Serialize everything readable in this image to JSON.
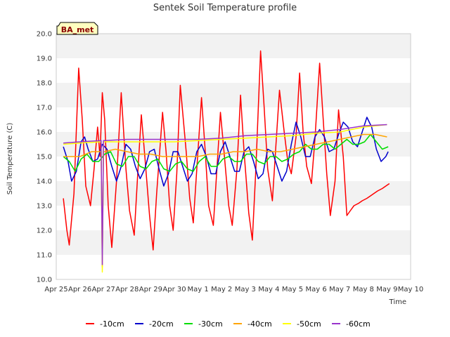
{
  "chart_data": {
    "type": "line",
    "title": "Sentek Soil Temperature profile",
    "xlabel": "Time",
    "ylabel": "Soil Temperature (C)",
    "ylim": [
      10.0,
      20.0
    ],
    "xlim": [
      0,
      15
    ],
    "x_unit": "days since Apr 25",
    "x_ticks": [
      {
        "x": 0,
        "label": "Apr 25"
      },
      {
        "x": 1,
        "label": "Apr 26"
      },
      {
        "x": 2,
        "label": "Apr 27"
      },
      {
        "x": 3,
        "label": "Apr 28"
      },
      {
        "x": 4,
        "label": "Apr 29"
      },
      {
        "x": 5,
        "label": "Apr 30"
      },
      {
        "x": 6,
        "label": "May 1"
      },
      {
        "x": 7,
        "label": "May 2"
      },
      {
        "x": 8,
        "label": "May 3"
      },
      {
        "x": 9,
        "label": "May 4"
      },
      {
        "x": 10,
        "label": "May 5"
      },
      {
        "x": 11,
        "label": "May 6"
      },
      {
        "x": 12,
        "label": "May 7"
      },
      {
        "x": 13,
        "label": "May 8"
      },
      {
        "x": 14,
        "label": "May 9"
      },
      {
        "x": 15,
        "label": "May 10"
      }
    ],
    "y_ticks": [
      "10.0",
      "11.0",
      "12.0",
      "13.0",
      "14.0",
      "15.0",
      "16.0",
      "17.0",
      "18.0",
      "19.0",
      "20.0"
    ],
    "grid": "horizontal bands",
    "legend_position": "bottom",
    "annotation": "BA_met",
    "series": [
      {
        "name": "-10cm",
        "color": "#ff0000",
        "x": [
          0.3,
          0.45,
          0.55,
          0.75,
          0.95,
          1.1,
          1.25,
          1.45,
          1.6,
          1.75,
          1.85,
          1.95,
          2.05,
          2.2,
          2.35,
          2.55,
          2.75,
          2.95,
          3.1,
          3.3,
          3.45,
          3.6,
          3.75,
          3.95,
          4.1,
          4.25,
          4.5,
          4.65,
          4.8,
          4.95,
          5.1,
          5.25,
          5.5,
          5.65,
          5.8,
          5.95,
          6.15,
          6.3,
          6.45,
          6.65,
          6.8,
          6.95,
          7.1,
          7.3,
          7.45,
          7.65,
          7.8,
          7.95,
          8.15,
          8.3,
          8.45,
          8.65,
          8.8,
          8.95,
          9.15,
          9.3,
          9.45,
          9.65,
          9.8,
          9.95,
          10.15,
          10.3,
          10.45,
          10.6,
          10.8,
          10.95,
          11.15,
          11.3,
          11.45,
          11.6,
          11.8,
          11.95,
          12.15,
          12.3,
          12.45,
          12.6,
          12.8,
          12.95,
          13.15,
          13.3,
          13.45,
          13.6,
          13.8,
          13.95,
          14.1
        ],
        "y": [
          13.3,
          12.0,
          11.4,
          13.5,
          18.6,
          16.5,
          13.8,
          13.0,
          14.5,
          16.2,
          15.0,
          17.6,
          16.5,
          13.0,
          11.3,
          14.0,
          17.6,
          14.5,
          12.8,
          11.8,
          14.3,
          16.7,
          15.0,
          12.6,
          11.2,
          13.5,
          16.8,
          15.2,
          13.0,
          12.0,
          14.3,
          17.9,
          15.2,
          13.3,
          12.3,
          14.5,
          17.4,
          15.3,
          13.0,
          12.2,
          14.5,
          16.8,
          15.2,
          13.0,
          12.2,
          14.5,
          17.5,
          15.2,
          12.7,
          11.6,
          14.5,
          19.3,
          17.0,
          14.5,
          13.2,
          15.5,
          17.7,
          16.0,
          14.8,
          14.3,
          15.8,
          18.4,
          16.0,
          14.6,
          13.9,
          15.7,
          18.8,
          16.5,
          14.3,
          12.6,
          14.0,
          16.9,
          15.0,
          12.6,
          12.8,
          13.0,
          13.1,
          13.2,
          13.3,
          13.4,
          13.5,
          13.6,
          13.7,
          13.8,
          13.9
        ]
      },
      {
        "name": "-20cm",
        "color": "#0000cc",
        "x": [
          0.3,
          0.5,
          0.65,
          0.85,
          1.05,
          1.2,
          1.35,
          1.55,
          1.75,
          1.95,
          2.15,
          2.35,
          2.55,
          2.75,
          2.95,
          3.15,
          3.35,
          3.55,
          3.75,
          3.95,
          4.15,
          4.35,
          4.55,
          4.75,
          4.95,
          5.15,
          5.35,
          5.55,
          5.75,
          5.95,
          6.15,
          6.35,
          6.55,
          6.75,
          6.95,
          7.15,
          7.35,
          7.55,
          7.75,
          7.95,
          8.15,
          8.35,
          8.55,
          8.75,
          8.95,
          9.15,
          9.35,
          9.55,
          9.75,
          9.95,
          10.15,
          10.35,
          10.55,
          10.75,
          10.95,
          11.15,
          11.35,
          11.55,
          11.75,
          11.95,
          12.15,
          12.35,
          12.55,
          12.75,
          12.95,
          13.15,
          13.35,
          13.55,
          13.75,
          13.95,
          14.05
        ],
        "y": [
          15.4,
          14.8,
          14.0,
          14.4,
          15.6,
          15.8,
          15.3,
          14.8,
          14.9,
          15.5,
          15.3,
          14.6,
          14.0,
          14.6,
          15.5,
          15.3,
          14.6,
          14.1,
          14.5,
          15.2,
          15.3,
          14.5,
          13.8,
          14.3,
          15.2,
          15.2,
          14.6,
          14.0,
          14.3,
          15.2,
          15.5,
          15.0,
          14.3,
          14.3,
          15.2,
          15.6,
          15.0,
          14.4,
          14.4,
          15.2,
          15.4,
          14.8,
          14.1,
          14.3,
          15.3,
          15.2,
          14.6,
          14.0,
          14.4,
          15.5,
          16.4,
          15.8,
          15.0,
          15.0,
          15.8,
          16.1,
          15.8,
          15.2,
          15.3,
          15.9,
          16.4,
          16.2,
          15.6,
          15.4,
          16.0,
          16.6,
          16.2,
          15.3,
          14.8,
          15.0,
          15.2
        ]
      },
      {
        "name": "-30cm",
        "color": "#00dd00",
        "x": [
          0.3,
          0.55,
          0.8,
          1.05,
          1.3,
          1.55,
          1.8,
          2.05,
          2.3,
          2.55,
          2.8,
          3.05,
          3.3,
          3.55,
          3.8,
          4.05,
          4.3,
          4.55,
          4.8,
          5.05,
          5.3,
          5.55,
          5.8,
          6.05,
          6.3,
          6.55,
          6.8,
          7.05,
          7.3,
          7.55,
          7.8,
          8.05,
          8.3,
          8.55,
          8.8,
          9.05,
          9.3,
          9.55,
          9.8,
          10.05,
          10.3,
          10.55,
          10.8,
          11.05,
          11.3,
          11.55,
          11.8,
          12.05,
          12.3,
          12.55,
          12.8,
          13.05,
          13.3,
          13.55,
          13.8,
          14.05
        ],
        "y": [
          15.0,
          14.8,
          14.4,
          14.9,
          15.1,
          14.8,
          14.8,
          15.1,
          15.2,
          14.7,
          14.6,
          15.0,
          15.0,
          14.6,
          14.5,
          14.8,
          14.9,
          14.5,
          14.4,
          14.7,
          14.8,
          14.5,
          14.4,
          14.8,
          15.0,
          14.6,
          14.6,
          14.9,
          15.0,
          14.8,
          14.8,
          15.1,
          15.1,
          14.8,
          14.7,
          15.0,
          15.0,
          14.8,
          14.9,
          15.1,
          15.2,
          15.5,
          15.3,
          15.3,
          15.5,
          15.5,
          15.3,
          15.5,
          15.7,
          15.5,
          15.5,
          15.6,
          15.9,
          15.6,
          15.3,
          15.4
        ]
      },
      {
        "name": "-40cm",
        "color": "#ffa500",
        "x": [
          0.3,
          1.0,
          1.5,
          1.9,
          1.95,
          2.0,
          2.05,
          2.5,
          3.0,
          3.5,
          4.0,
          4.5,
          5.0,
          5.5,
          6.0,
          6.5,
          7.0,
          7.5,
          8.0,
          8.5,
          9.0,
          9.5,
          10.0,
          10.5,
          11.0,
          11.5,
          12.0,
          12.5,
          13.0,
          13.5,
          14.0
        ],
        "y": [
          15.0,
          15.0,
          15.2,
          15.2,
          10.5,
          15.2,
          15.2,
          15.3,
          15.2,
          15.1,
          15.1,
          15.0,
          15.0,
          15.0,
          15.0,
          15.1,
          15.1,
          15.2,
          15.2,
          15.3,
          15.2,
          15.2,
          15.3,
          15.4,
          15.5,
          15.6,
          15.7,
          15.8,
          15.9,
          15.9,
          15.8
        ]
      },
      {
        "name": "-50cm",
        "color": "#ffff00",
        "x": [
          0.3,
          1.0,
          1.9,
          1.95,
          2.0,
          2.05,
          3.0,
          4.0,
          5.0,
          6.0,
          7.0,
          8.0,
          9.0,
          10.0,
          11.0,
          12.0,
          13.0,
          14.0
        ],
        "y": [
          15.5,
          15.55,
          15.6,
          10.3,
          15.6,
          15.6,
          15.6,
          15.6,
          15.6,
          15.65,
          15.7,
          15.75,
          15.8,
          15.85,
          15.95,
          16.0,
          16.2,
          16.3
        ]
      },
      {
        "name": "-60cm",
        "color": "#9933cc",
        "x": [
          0.3,
          1.0,
          1.9,
          1.95,
          2.0,
          2.05,
          3.0,
          4.0,
          5.0,
          6.0,
          7.0,
          8.0,
          9.0,
          10.0,
          11.0,
          12.0,
          13.0,
          14.0
        ],
        "y": [
          15.55,
          15.6,
          15.65,
          10.6,
          15.65,
          15.65,
          15.7,
          15.7,
          15.7,
          15.7,
          15.75,
          15.85,
          15.9,
          15.95,
          16.0,
          16.1,
          16.25,
          16.3
        ]
      }
    ]
  }
}
